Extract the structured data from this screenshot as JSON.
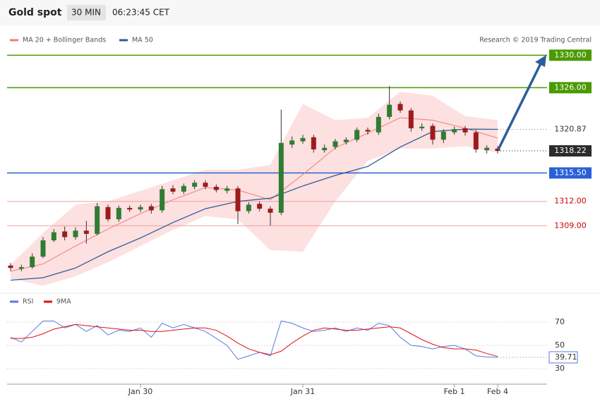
{
  "header": {
    "title": "Gold spot",
    "interval": "30 MIN",
    "time": "06:23:45 CET"
  },
  "chart_data": [
    {
      "type": "candlestick",
      "source": "Research © 2019 Trading Central",
      "up_color": "#2e7d32",
      "down_color": "#9e1b1b",
      "ylim": [
        1301.3,
        1333.5
      ],
      "open": [
        1304.1,
        1303.7,
        1303.9,
        1305.2,
        1307.2,
        1308.3,
        1307.6,
        1308.4,
        1308.0,
        1311.3,
        1309.8,
        1311.2,
        1311.0,
        1311.4,
        1310.9,
        1313.6,
        1313.2,
        1313.8,
        1314.3,
        1313.8,
        1313.3,
        1313.6,
        1310.8,
        1311.7,
        1311.1,
        1310.6,
        1319.0,
        1319.4,
        1319.9,
        1318.3,
        1318.7,
        1319.3,
        1319.6,
        1320.8,
        1320.5,
        1322.4,
        1324.0,
        1323.2,
        1321.0,
        1321.3,
        1319.6,
        1320.5,
        1321.0,
        1320.5,
        1318.3,
        1318.5
      ],
      "high": [
        1304.4,
        1304.2,
        1305.6,
        1307.6,
        1308.6,
        1308.9,
        1308.8,
        1309.6,
        1311.8,
        1311.6,
        1311.5,
        1311.5,
        1311.6,
        1311.7,
        1313.9,
        1314.0,
        1314.2,
        1314.6,
        1314.6,
        1314.1,
        1313.9,
        1313.9,
        1311.9,
        1312.0,
        1311.4,
        1323.3,
        1320.0,
        1320.2,
        1320.2,
        1319.0,
        1319.7,
        1319.9,
        1321.1,
        1321.1,
        1322.8,
        1326.2,
        1324.3,
        1323.5,
        1321.6,
        1321.6,
        1320.9,
        1321.2,
        1321.3,
        1320.8,
        1318.9,
        1318.8
      ],
      "low": [
        1303.4,
        1303.4,
        1303.7,
        1305.0,
        1307.0,
        1307.2,
        1307.3,
        1306.8,
        1307.8,
        1309.5,
        1309.5,
        1310.7,
        1310.7,
        1310.5,
        1310.6,
        1312.9,
        1312.9,
        1313.5,
        1313.5,
        1313.1,
        1313.0,
        1309.2,
        1310.5,
        1310.8,
        1309.0,
        1310.3,
        1318.6,
        1319.1,
        1318.0,
        1318.0,
        1318.4,
        1319.0,
        1319.3,
        1320.2,
        1320.2,
        1322.1,
        1322.9,
        1320.6,
        1320.7,
        1319.0,
        1319.2,
        1320.2,
        1320.1,
        1318.0,
        1317.9,
        1317.9
      ],
      "close": [
        1303.8,
        1303.9,
        1305.2,
        1307.2,
        1308.2,
        1307.6,
        1308.4,
        1308.0,
        1311.4,
        1309.8,
        1311.2,
        1311.0,
        1311.3,
        1310.9,
        1313.5,
        1313.2,
        1313.9,
        1314.3,
        1313.8,
        1313.4,
        1313.6,
        1310.8,
        1311.6,
        1311.1,
        1310.6,
        1319.2,
        1319.5,
        1319.8,
        1318.4,
        1318.6,
        1319.4,
        1319.6,
        1320.8,
        1320.6,
        1322.4,
        1323.9,
        1323.2,
        1321.0,
        1321.2,
        1319.6,
        1320.6,
        1320.9,
        1320.5,
        1318.4,
        1318.6,
        1318.22
      ],
      "overlays": [
        {
          "name": "MA 20 + Bollinger Bands",
          "color": "#f07c7c",
          "band_color": "#fde0e0",
          "x": [
            0,
            3,
            6,
            9,
            12,
            15,
            18,
            21,
            24,
            27,
            30,
            33,
            36,
            39,
            42,
            45
          ],
          "values": [
            1303.4,
            1304.3,
            1306.5,
            1308.6,
            1310.5,
            1312.2,
            1313.7,
            1313.4,
            1312.2,
            1315.3,
            1318.6,
            1320.4,
            1322.3,
            1322.0,
            1321.0,
            1319.8
          ],
          "upper": [
            1304.2,
            1308.1,
            1311.6,
            1312.0,
            1313.3,
            1314.6,
            1315.9,
            1315.9,
            1316.5,
            1324.0,
            1322.0,
            1322.3,
            1325.5,
            1325.0,
            1322.5,
            1322.0
          ],
          "lower": [
            1302.5,
            1301.6,
            1302.8,
            1304.5,
            1306.5,
            1308.5,
            1310.2,
            1309.8,
            1306.0,
            1305.8,
            1312.0,
            1317.0,
            1318.5,
            1318.5,
            1318.8,
            1318.0
          ]
        },
        {
          "name": "MA 50",
          "color": "#2c5d9a",
          "x": [
            0,
            3,
            6,
            9,
            12,
            15,
            18,
            21,
            24,
            27,
            30,
            33,
            36,
            39,
            42,
            45
          ],
          "values": [
            1302.3,
            1302.6,
            1303.8,
            1305.8,
            1307.5,
            1309.4,
            1311.1,
            1312.0,
            1312.4,
            1313.9,
            1315.2,
            1316.3,
            1318.7,
            1320.6,
            1320.9,
            1320.87
          ]
        }
      ],
      "levels": [
        {
          "value": 1330,
          "label": "1330.00",
          "color": "#4a9a00",
          "label_fill": "#4a9a00",
          "label_text": "#ffffff"
        },
        {
          "value": 1326,
          "label": "1326.00",
          "color": "#4a9a00",
          "label_fill": "#4a9a00",
          "label_text": "#ffffff"
        },
        {
          "value": 1315.5,
          "label": "1315.50",
          "color": "#2860d8",
          "label_fill": "#2860d8",
          "label_text": "#ffffff"
        },
        {
          "value": 1312,
          "label": "1312.00",
          "color": "#f0a0a0",
          "label_fill": "#ffffff",
          "label_text": "#cc0000"
        },
        {
          "value": 1309,
          "label": "1309.00",
          "color": "#f0a0a0",
          "label_fill": "#ffffff",
          "label_text": "#cc0000"
        }
      ]
    },
    {
      "type": "line",
      "categories": [
        null,
        null,
        null,
        null,
        null,
        null,
        null,
        null,
        null,
        null,
        null,
        null,
        "Jan 30",
        null,
        null,
        null,
        null,
        null,
        null,
        null,
        null,
        null,
        null,
        null,
        null,
        null,
        null,
        "Jan 31",
        null,
        null,
        null,
        null,
        null,
        null,
        null,
        null,
        null,
        null,
        null,
        null,
        null,
        "Feb 1",
        null,
        null,
        null,
        "Feb 4"
      ],
      "ylim": [
        20,
        80
      ],
      "yticks": [
        30,
        50,
        70
      ],
      "grid": true,
      "series": [
        {
          "name": "RSI",
          "color": "#5a78e0",
          "values": [
            57,
            53,
            62,
            71,
            71,
            65,
            68,
            62,
            67,
            59,
            63,
            62,
            65,
            57,
            69,
            65,
            68,
            65,
            62,
            56,
            50,
            38,
            41,
            44,
            41,
            71,
            69,
            65,
            62,
            63,
            65,
            62,
            65,
            63,
            69,
            67,
            57,
            50,
            49,
            47,
            49,
            50,
            47,
            41,
            40,
            39.71
          ]
        },
        {
          "name": "9MA",
          "color": "#e01010",
          "values": [
            56,
            56,
            57,
            60,
            64,
            66,
            68,
            67,
            66,
            65,
            64,
            63,
            63,
            62,
            62,
            63,
            64,
            65,
            65,
            63,
            58,
            52,
            47,
            44,
            42,
            45,
            52,
            58,
            63,
            65,
            64,
            63,
            63,
            64,
            65,
            66,
            65,
            60,
            55,
            51,
            48,
            47,
            47,
            46,
            43,
            40.5
          ]
        }
      ]
    }
  ]
}
